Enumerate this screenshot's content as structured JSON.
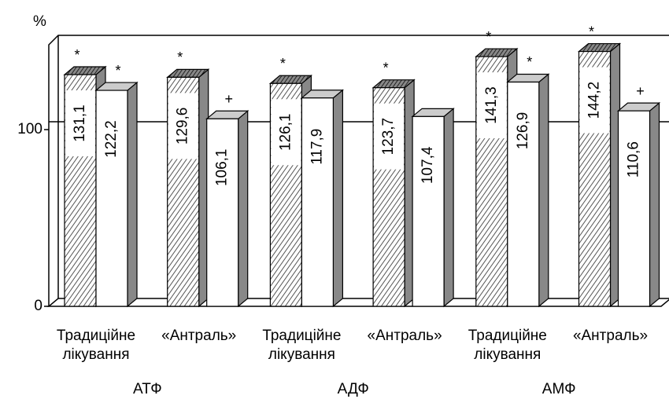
{
  "chart_data": {
    "type": "bar3d",
    "y_label": "%",
    "groups": [
      "АТФ",
      "АДФ",
      "АМФ"
    ],
    "categories": [
      [
        "Традиційне",
        "лікування"
      ],
      [
        "«Антраль»"
      ],
      [
        "Традиційне",
        "лікування"
      ],
      [
        "«Антраль»"
      ],
      [
        "Традиційне",
        "лікування"
      ],
      [
        "«Антраль»"
      ]
    ],
    "series": [
      {
        "style": "hatched",
        "values": [
          131.1,
          129.6,
          126.1,
          123.7,
          141.3,
          144.2
        ],
        "value_labels": [
          "131,1",
          "129,6",
          "126,1",
          "123,7",
          "141,3",
          "144,2"
        ],
        "markers": [
          "*",
          "*",
          "*",
          "*",
          "*",
          "*"
        ]
      },
      {
        "style": "white",
        "values": [
          122.2,
          106.1,
          117.9,
          107.4,
          126.9,
          110.6
        ],
        "value_labels": [
          "122,2",
          "106,1",
          "117,9",
          "107,4",
          "126,9",
          "110,6"
        ],
        "markers": [
          "*",
          "+",
          null,
          null,
          "*",
          "+"
        ]
      }
    ],
    "ylim": [
      0,
      153
    ],
    "yticks": [
      0,
      100
    ],
    "grid": true
  }
}
